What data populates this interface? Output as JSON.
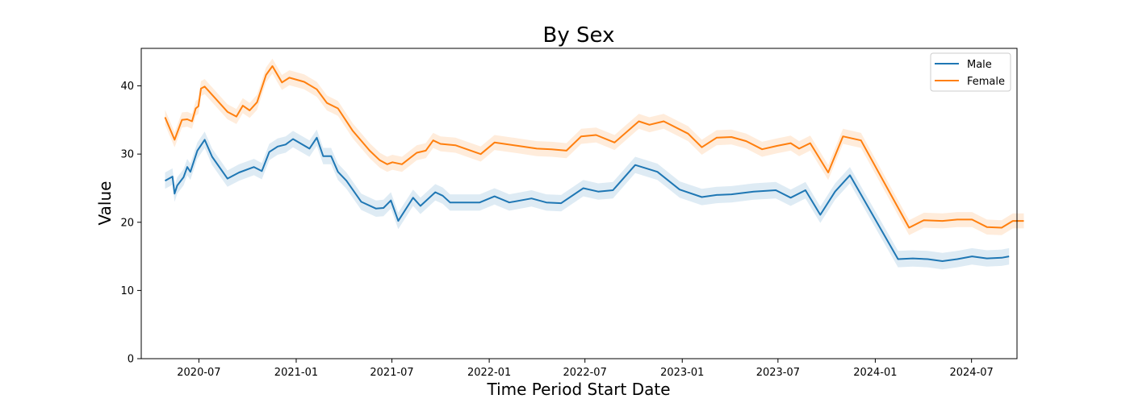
{
  "chart_data": {
    "type": "line",
    "title": "By Sex",
    "xlabel": "Time Period Start Date",
    "ylabel": "Value",
    "xlim": [
      "2020-03-14",
      "2024-09-25"
    ],
    "ylim": [
      0,
      45.5
    ],
    "x_ticks": [
      {
        "date": "2020-07-01",
        "label": "2020-07"
      },
      {
        "date": "2021-01-01",
        "label": "2021-01"
      },
      {
        "date": "2021-07-01",
        "label": "2021-07"
      },
      {
        "date": "2022-01-01",
        "label": "2022-01"
      },
      {
        "date": "2022-07-01",
        "label": "2022-07"
      },
      {
        "date": "2023-01-01",
        "label": "2023-01"
      },
      {
        "date": "2023-07-01",
        "label": "2023-07"
      },
      {
        "date": "2024-01-01",
        "label": "2024-01"
      },
      {
        "date": "2024-07-01",
        "label": "2024-07"
      }
    ],
    "y_ticks": [
      0,
      10,
      20,
      30,
      40
    ],
    "legend_position": "top-right",
    "grid": false,
    "confidence_band": true,
    "series": [
      {
        "name": "Male",
        "color": "#1f77b4",
        "band_width": 1.2,
        "points": [
          [
            "2020-04-28",
            26.1
          ],
          [
            "2020-05-12",
            26.7
          ],
          [
            "2020-05-16",
            24.2
          ],
          [
            "2020-05-21",
            25.4
          ],
          [
            "2020-06-02",
            26.6
          ],
          [
            "2020-06-09",
            28.1
          ],
          [
            "2020-06-15",
            27.4
          ],
          [
            "2020-06-28",
            30.5
          ],
          [
            "2020-07-12",
            32.1
          ],
          [
            "2020-07-26",
            29.6
          ],
          [
            "2020-08-24",
            26.4
          ],
          [
            "2020-09-15",
            27.3
          ],
          [
            "2020-10-13",
            28.1
          ],
          [
            "2020-10-28",
            27.5
          ],
          [
            "2020-11-11",
            30.3
          ],
          [
            "2020-11-27",
            31.1
          ],
          [
            "2020-12-12",
            31.4
          ],
          [
            "2020-12-26",
            32.2
          ],
          [
            "2021-01-26",
            30.8
          ],
          [
            "2021-02-09",
            32.4
          ],
          [
            "2021-02-21",
            29.7
          ],
          [
            "2021-03-08",
            29.7
          ],
          [
            "2021-03-21",
            27.4
          ],
          [
            "2021-04-06",
            26.1
          ],
          [
            "2021-05-04",
            23.0
          ],
          [
            "2021-06-01",
            22.0
          ],
          [
            "2021-06-15",
            22.1
          ],
          [
            "2021-06-29",
            23.2
          ],
          [
            "2021-07-13",
            20.2
          ],
          [
            "2021-08-10",
            23.6
          ],
          [
            "2021-08-24",
            22.4
          ],
          [
            "2021-09-21",
            24.4
          ],
          [
            "2021-10-05",
            23.9
          ],
          [
            "2021-10-19",
            22.9
          ],
          [
            "2021-12-14",
            22.9
          ],
          [
            "2022-01-11",
            23.8
          ],
          [
            "2022-02-08",
            22.9
          ],
          [
            "2022-03-22",
            23.5
          ],
          [
            "2022-04-19",
            22.9
          ],
          [
            "2022-05-17",
            22.8
          ],
          [
            "2022-06-28",
            25.0
          ],
          [
            "2022-07-26",
            24.5
          ],
          [
            "2022-08-23",
            24.7
          ],
          [
            "2022-10-04",
            28.4
          ],
          [
            "2022-11-15",
            27.4
          ],
          [
            "2022-12-27",
            24.8
          ],
          [
            "2023-02-07",
            23.7
          ],
          [
            "2023-03-07",
            24.0
          ],
          [
            "2023-04-04",
            24.1
          ],
          [
            "2023-05-16",
            24.5
          ],
          [
            "2023-06-27",
            24.7
          ],
          [
            "2023-07-25",
            23.6
          ],
          [
            "2023-08-22",
            24.7
          ],
          [
            "2023-09-19",
            21.1
          ],
          [
            "2023-10-17",
            24.5
          ],
          [
            "2023-11-14",
            26.9
          ],
          [
            "2024-02-13",
            14.6
          ],
          [
            "2024-03-12",
            14.7
          ],
          [
            "2024-04-09",
            14.6
          ],
          [
            "2024-05-07",
            14.3
          ],
          [
            "2024-06-04",
            14.6
          ],
          [
            "2024-07-02",
            15.0
          ],
          [
            "2024-07-30",
            14.7
          ],
          [
            "2024-08-27",
            14.8
          ],
          [
            "2024-09-10",
            15.0
          ]
        ]
      },
      {
        "name": "Female",
        "color": "#ff7f0e",
        "band_width": 1.1,
        "points": [
          [
            "2020-04-28",
            35.4
          ],
          [
            "2020-05-16",
            32.1
          ],
          [
            "2020-05-30",
            35.0
          ],
          [
            "2020-06-09",
            35.1
          ],
          [
            "2020-06-18",
            34.8
          ],
          [
            "2020-06-25",
            36.7
          ],
          [
            "2020-06-30",
            37.0
          ],
          [
            "2020-07-05",
            39.6
          ],
          [
            "2020-07-12",
            39.9
          ],
          [
            "2020-08-24",
            36.2
          ],
          [
            "2020-09-10",
            35.5
          ],
          [
            "2020-09-22",
            37.1
          ],
          [
            "2020-10-05",
            36.4
          ],
          [
            "2020-10-19",
            37.6
          ],
          [
            "2020-11-05",
            41.6
          ],
          [
            "2020-11-17",
            42.9
          ],
          [
            "2020-12-05",
            40.5
          ],
          [
            "2020-12-19",
            41.2
          ],
          [
            "2021-01-16",
            40.6
          ],
          [
            "2021-02-09",
            39.5
          ],
          [
            "2021-02-28",
            37.5
          ],
          [
            "2021-03-21",
            36.7
          ],
          [
            "2021-04-18",
            33.4
          ],
          [
            "2021-05-20",
            30.5
          ],
          [
            "2021-06-08",
            29.1
          ],
          [
            "2021-06-22",
            28.5
          ],
          [
            "2021-07-02",
            28.8
          ],
          [
            "2021-07-20",
            28.5
          ],
          [
            "2021-08-17",
            30.2
          ],
          [
            "2021-09-03",
            30.5
          ],
          [
            "2021-09-17",
            32.0
          ],
          [
            "2021-10-01",
            31.5
          ],
          [
            "2021-10-29",
            31.3
          ],
          [
            "2021-12-16",
            30.0
          ],
          [
            "2022-01-11",
            31.7
          ],
          [
            "2022-02-25",
            31.2
          ],
          [
            "2022-04-01",
            30.8
          ],
          [
            "2022-04-29",
            30.7
          ],
          [
            "2022-05-27",
            30.5
          ],
          [
            "2022-06-24",
            32.6
          ],
          [
            "2022-07-22",
            32.8
          ],
          [
            "2022-08-26",
            31.7
          ],
          [
            "2022-10-11",
            34.8
          ],
          [
            "2022-10-31",
            34.3
          ],
          [
            "2022-11-27",
            34.8
          ],
          [
            "2023-01-12",
            33.0
          ],
          [
            "2023-02-07",
            31.0
          ],
          [
            "2023-03-07",
            32.4
          ],
          [
            "2023-04-04",
            32.5
          ],
          [
            "2023-05-02",
            31.9
          ],
          [
            "2023-06-01",
            30.7
          ],
          [
            "2023-06-29",
            31.2
          ],
          [
            "2023-07-25",
            31.6
          ],
          [
            "2023-08-10",
            30.8
          ],
          [
            "2023-08-31",
            31.6
          ],
          [
            "2023-10-04",
            27.3
          ],
          [
            "2023-11-01",
            32.6
          ],
          [
            "2023-12-05",
            32.0
          ],
          [
            "2024-03-05",
            19.2
          ],
          [
            "2024-04-02",
            20.3
          ],
          [
            "2024-05-07",
            20.2
          ],
          [
            "2024-06-04",
            20.4
          ],
          [
            "2024-07-02",
            20.4
          ],
          [
            "2024-07-30",
            19.3
          ],
          [
            "2024-08-27",
            19.2
          ],
          [
            "2024-09-17",
            20.2
          ],
          [
            "2024-10-08",
            20.2
          ]
        ]
      }
    ]
  }
}
